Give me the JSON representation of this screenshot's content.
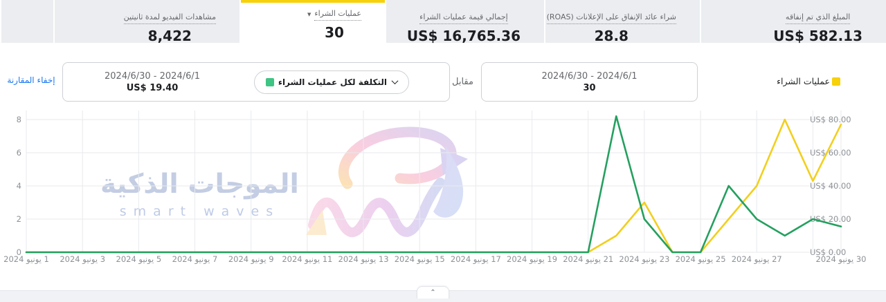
{
  "metrics": [
    {
      "label": "المبلغ الذي تم إنفاقه",
      "value": "US$ 582.13",
      "selected": false
    },
    {
      "label": "شراء عائد الإنفاق على الإعلانات (ROAS)",
      "value": "28.8",
      "selected": false
    },
    {
      "label": "إجمالي قيمة عمليات الشراء",
      "value": "US$ 16,765.36",
      "selected": false
    },
    {
      "label": "عمليات الشراء",
      "value": "30",
      "selected": true
    },
    {
      "label": "مشاهدات الفيديو لمدة ثانيتين",
      "value": "8,422",
      "selected": false
    }
  ],
  "comparison": {
    "hide_link": "إخفاء المقارنة",
    "primary": {
      "dates": "2024/6/1 - 2024/6/30",
      "value": "US$ 19.40"
    },
    "metric_dropdown_label": "التكلفة لكل عمليات الشراء",
    "versus_label": "مقابل",
    "secondary": {
      "dates": "2024/6/1 - 2024/6/30",
      "value": "30"
    },
    "legend_label": "عمليات الشراء"
  },
  "colors": {
    "selected_tab_accent": "#F7D10A",
    "legend_yellow": "#F7D10A",
    "swatch_green": "#3EC483",
    "line_yellow": "#F2CF1D",
    "line_green": "#24A05F",
    "link_blue": "#1877F2"
  },
  "watermark": {
    "arabic": "الموجات الذكية",
    "latin": "smart waves"
  },
  "footer": {
    "collapse_icon": "⌃"
  },
  "chart_data": {
    "type": "line",
    "x_unit": "أيام يونيو 2024",
    "days": [
      1,
      2,
      3,
      4,
      5,
      6,
      7,
      8,
      9,
      10,
      11,
      12,
      13,
      14,
      15,
      16,
      17,
      18,
      19,
      20,
      21,
      22,
      23,
      24,
      25,
      26,
      27,
      28,
      29,
      30
    ],
    "series": [
      {
        "name": "عمليات الشراء",
        "axis": "left",
        "color": "#F2CF1D",
        "values": [
          0,
          0,
          0,
          0,
          0,
          0,
          0,
          0,
          0,
          0,
          0,
          0,
          0,
          0,
          0,
          0,
          0,
          0,
          0,
          0,
          0,
          1,
          3,
          0,
          0,
          2,
          4,
          8,
          4.3,
          7.7
        ]
      },
      {
        "name": "التكلفة لكل عمليات الشراء",
        "axis": "right",
        "color": "#24A05F",
        "values": [
          0,
          0,
          0,
          0,
          0,
          0,
          0,
          0,
          0,
          0,
          0,
          0,
          0,
          0,
          0,
          0,
          0,
          0,
          0,
          0,
          0,
          82,
          20,
          0,
          0,
          40,
          20,
          10,
          20,
          15.5
        ]
      }
    ],
    "left_axis": {
      "ticks": [
        0,
        2,
        4,
        6,
        8
      ],
      "max": 8.5
    },
    "right_axis": {
      "values": [
        0,
        20,
        40,
        60,
        80
      ],
      "labels": [
        "US$ 0.00",
        "US$ 20.00",
        "US$ 40.00",
        "US$ 60.00",
        "US$ 80.00"
      ],
      "max": 85
    },
    "x_grid_days": [
      3,
      5,
      7,
      9,
      11,
      13,
      15,
      17,
      19,
      21,
      23,
      25,
      27,
      29
    ],
    "x_ticks": [
      {
        "day": 1,
        "label": "1 يونيو 2024"
      },
      {
        "day": 3,
        "label": "3 يونيو 2024"
      },
      {
        "day": 5,
        "label": "5 يونيو 2024"
      },
      {
        "day": 7,
        "label": "7 يونيو 2024"
      },
      {
        "day": 9,
        "label": "9 يونيو 2024"
      },
      {
        "day": 11,
        "label": "11 يونيو 2024"
      },
      {
        "day": 13,
        "label": "13 يونيو 2024"
      },
      {
        "day": 15,
        "label": "15 يونيو 2024"
      },
      {
        "day": 17,
        "label": "17 يونيو 2024"
      },
      {
        "day": 19,
        "label": "19 يونيو 2024"
      },
      {
        "day": 21,
        "label": "21 يونيو 2024"
      },
      {
        "day": 23,
        "label": "23 يونيو 2024"
      },
      {
        "day": 25,
        "label": "25 يونيو 2024"
      },
      {
        "day": 27,
        "label": "27 يونيو 2024"
      },
      {
        "day": 30,
        "label": "30 يونيو 2024"
      }
    ],
    "legend_position": "top-right",
    "grid": true
  }
}
